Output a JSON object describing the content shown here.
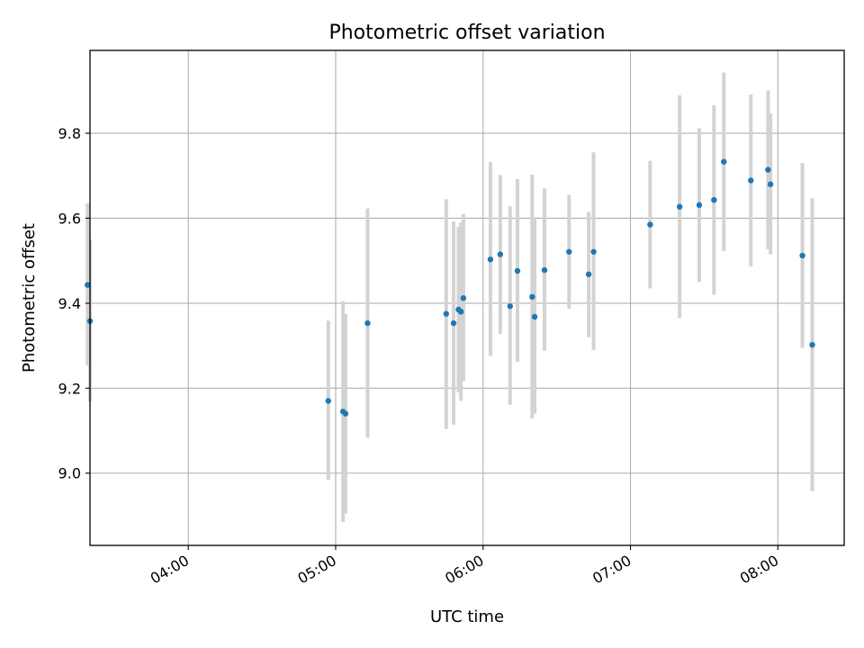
{
  "chart_data": {
    "type": "scatter",
    "title": "Photometric offset variation",
    "xlabel": "UTC time",
    "ylabel": "Photometric offset",
    "x_unit": "UTC hours",
    "xlim": [
      "03:20",
      "08:27"
    ],
    "ylim": [
      8.83,
      9.995
    ],
    "grid": true,
    "x_ticks": [
      "04:00",
      "05:00",
      "06:00",
      "07:00",
      "08:00"
    ],
    "y_ticks": [
      9.0,
      9.2,
      9.4,
      9.6,
      9.8
    ],
    "colors": {
      "point": "#1f77b4",
      "errorbar": "#d3d3d3",
      "grid": "#b0b0b0"
    },
    "points": [
      {
        "x": "03:19",
        "y": 9.443,
        "y_low": 9.253,
        "y_high": 9.635
      },
      {
        "x": "03:20",
        "y": 9.358,
        "y_low": 9.168,
        "y_high": 9.55
      },
      {
        "x": "04:57",
        "y": 9.17,
        "y_low": 8.984,
        "y_high": 9.359
      },
      {
        "x": "05:03",
        "y": 9.145,
        "y_low": 8.885,
        "y_high": 9.405
      },
      {
        "x": "05:04",
        "y": 9.14,
        "y_low": 8.905,
        "y_high": 9.375
      },
      {
        "x": "05:13",
        "y": 9.353,
        "y_low": 9.083,
        "y_high": 9.623
      },
      {
        "x": "05:45",
        "y": 9.375,
        "y_low": 9.104,
        "y_high": 9.645
      },
      {
        "x": "05:48",
        "y": 9.353,
        "y_low": 9.114,
        "y_high": 9.592
      },
      {
        "x": "05:50",
        "y": 9.385,
        "y_low": 9.19,
        "y_high": 9.58
      },
      {
        "x": "05:51",
        "y": 9.38,
        "y_low": 9.17,
        "y_high": 9.59
      },
      {
        "x": "05:52",
        "y": 9.412,
        "y_low": 9.217,
        "y_high": 9.61
      },
      {
        "x": "06:03",
        "y": 9.503,
        "y_low": 9.276,
        "y_high": 9.732
      },
      {
        "x": "06:07",
        "y": 9.515,
        "y_low": 9.328,
        "y_high": 9.702
      },
      {
        "x": "06:11",
        "y": 9.393,
        "y_low": 9.161,
        "y_high": 9.628
      },
      {
        "x": "06:14",
        "y": 9.476,
        "y_low": 9.262,
        "y_high": 9.692
      },
      {
        "x": "06:20",
        "y": 9.415,
        "y_low": 9.129,
        "y_high": 9.703
      },
      {
        "x": "06:21",
        "y": 9.368,
        "y_low": 9.14,
        "y_high": 9.598
      },
      {
        "x": "06:25",
        "y": 9.478,
        "y_low": 9.288,
        "y_high": 9.67
      },
      {
        "x": "06:35",
        "y": 9.521,
        "y_low": 9.387,
        "y_high": 9.655
      },
      {
        "x": "06:43",
        "y": 9.468,
        "y_low": 9.32,
        "y_high": 9.615
      },
      {
        "x": "06:45",
        "y": 9.521,
        "y_low": 9.29,
        "y_high": 9.755
      },
      {
        "x": "07:08",
        "y": 9.585,
        "y_low": 9.435,
        "y_high": 9.735
      },
      {
        "x": "07:20",
        "y": 9.627,
        "y_low": 9.365,
        "y_high": 9.889
      },
      {
        "x": "07:28",
        "y": 9.631,
        "y_low": 9.45,
        "y_high": 9.812
      },
      {
        "x": "07:34",
        "y": 9.643,
        "y_low": 9.42,
        "y_high": 9.866
      },
      {
        "x": "07:38",
        "y": 9.733,
        "y_low": 9.523,
        "y_high": 9.943
      },
      {
        "x": "07:49",
        "y": 9.689,
        "y_low": 9.487,
        "y_high": 9.891
      },
      {
        "x": "07:56",
        "y": 9.714,
        "y_low": 9.527,
        "y_high": 9.901
      },
      {
        "x": "07:57",
        "y": 9.68,
        "y_low": 9.515,
        "y_high": 9.847
      },
      {
        "x": "08:10",
        "y": 9.512,
        "y_low": 9.295,
        "y_high": 9.73
      },
      {
        "x": "08:14",
        "y": 9.302,
        "y_low": 8.958,
        "y_high": 9.647
      }
    ]
  }
}
